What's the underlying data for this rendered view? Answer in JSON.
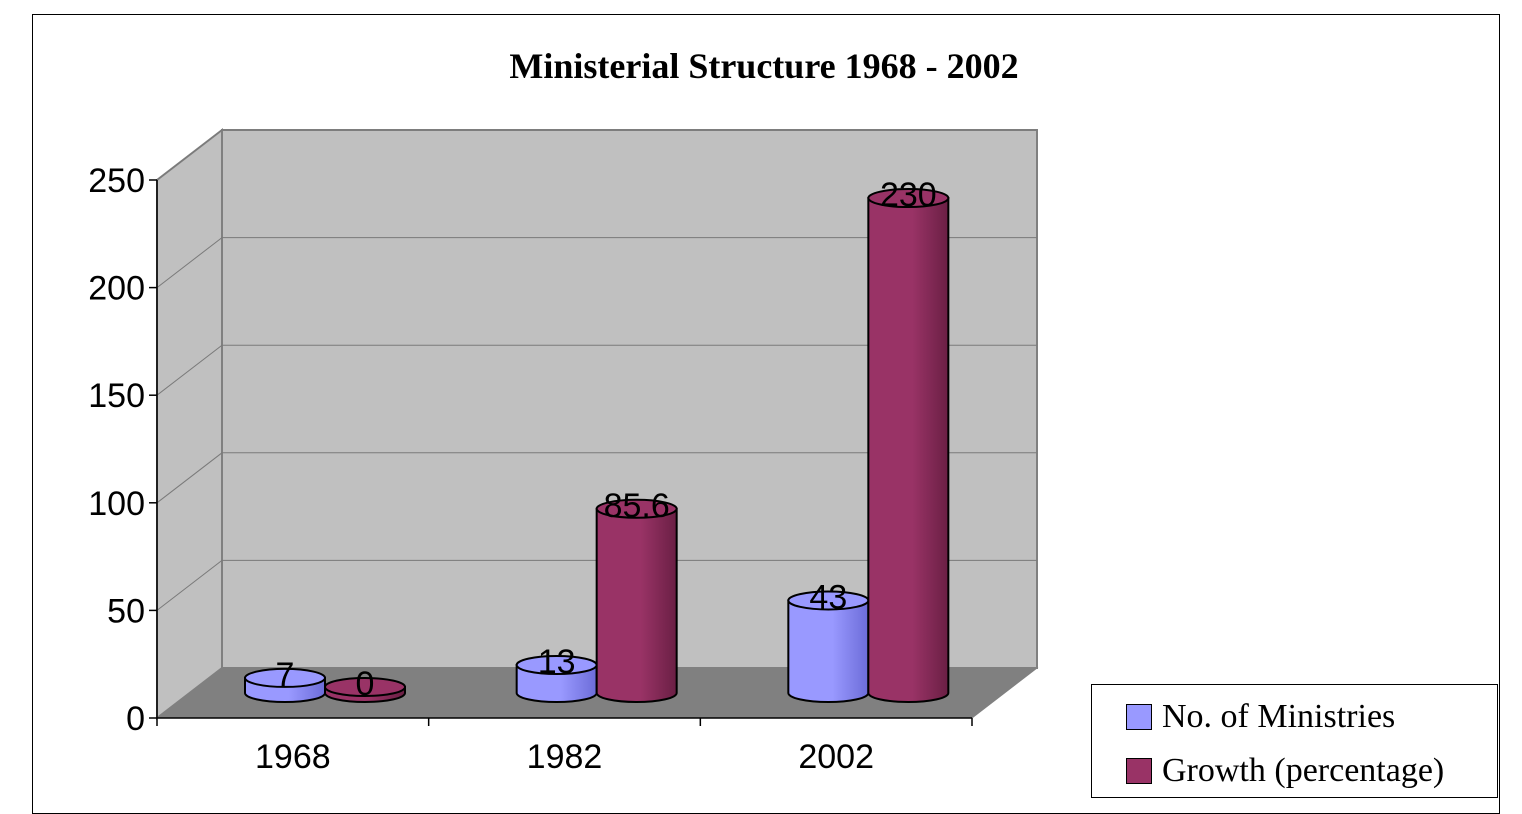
{
  "chart_data": {
    "type": "bar",
    "title": "Ministerial Structure 1968 - 2002",
    "categories": [
      "1968",
      "1982",
      "2002"
    ],
    "series": [
      {
        "name": "No. of Ministries",
        "values": [
          7,
          13,
          43
        ],
        "color": "#9999ff"
      },
      {
        "name": "Growth (percentage)",
        "values": [
          0,
          85.6,
          230
        ],
        "color": "#993366"
      }
    ],
    "data_labels": [
      [
        "7",
        "13",
        "43"
      ],
      [
        "0",
        "85.6",
        "230"
      ]
    ],
    "y_ticks": [
      "0",
      "50",
      "100",
      "150",
      "200",
      "250"
    ],
    "ylim": [
      0,
      250
    ],
    "grid": true,
    "legend_position": "bottom-right",
    "xlabel": "",
    "ylabel": ""
  },
  "colors": {
    "wall": "#c0c0c0",
    "floor": "#808080",
    "ministries_dark": "#6c6cd8",
    "growth_dark": "#6a1f44"
  }
}
